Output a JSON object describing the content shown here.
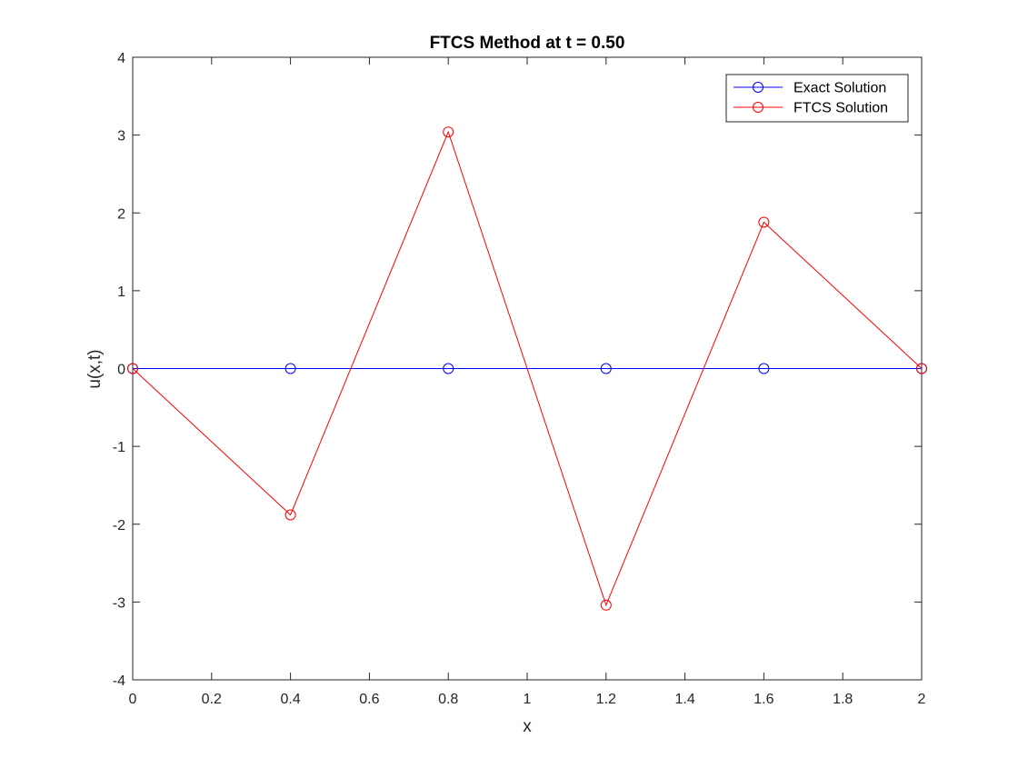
{
  "chart_data": {
    "type": "line",
    "title": "FTCS Method at t = 0.50",
    "xlabel": "x",
    "ylabel": "u(x,t)",
    "xlim": [
      0,
      2
    ],
    "ylim": [
      -4,
      4
    ],
    "xticks": [
      "0",
      "0.2",
      "0.4",
      "0.6",
      "0.8",
      "1",
      "1.2",
      "1.4",
      "1.6",
      "1.8",
      "2"
    ],
    "yticks": [
      "-4",
      "-3",
      "-2",
      "-1",
      "0",
      "1",
      "2",
      "3",
      "4"
    ],
    "grid": false,
    "legend_position": "top-right",
    "series": [
      {
        "name": "Exact Solution",
        "color": "#0000ff",
        "marker": "circle",
        "x": [
          0,
          0.4,
          0.8,
          1.2,
          1.6,
          2.0
        ],
        "y": [
          0,
          0,
          0,
          0,
          0,
          0
        ]
      },
      {
        "name": "FTCS Solution",
        "color": "#ff0000",
        "marker": "circle",
        "x": [
          0,
          0.4,
          0.8,
          1.2,
          1.6,
          2.0
        ],
        "y": [
          0,
          -1.88,
          3.04,
          -3.04,
          1.88,
          0
        ]
      }
    ]
  }
}
